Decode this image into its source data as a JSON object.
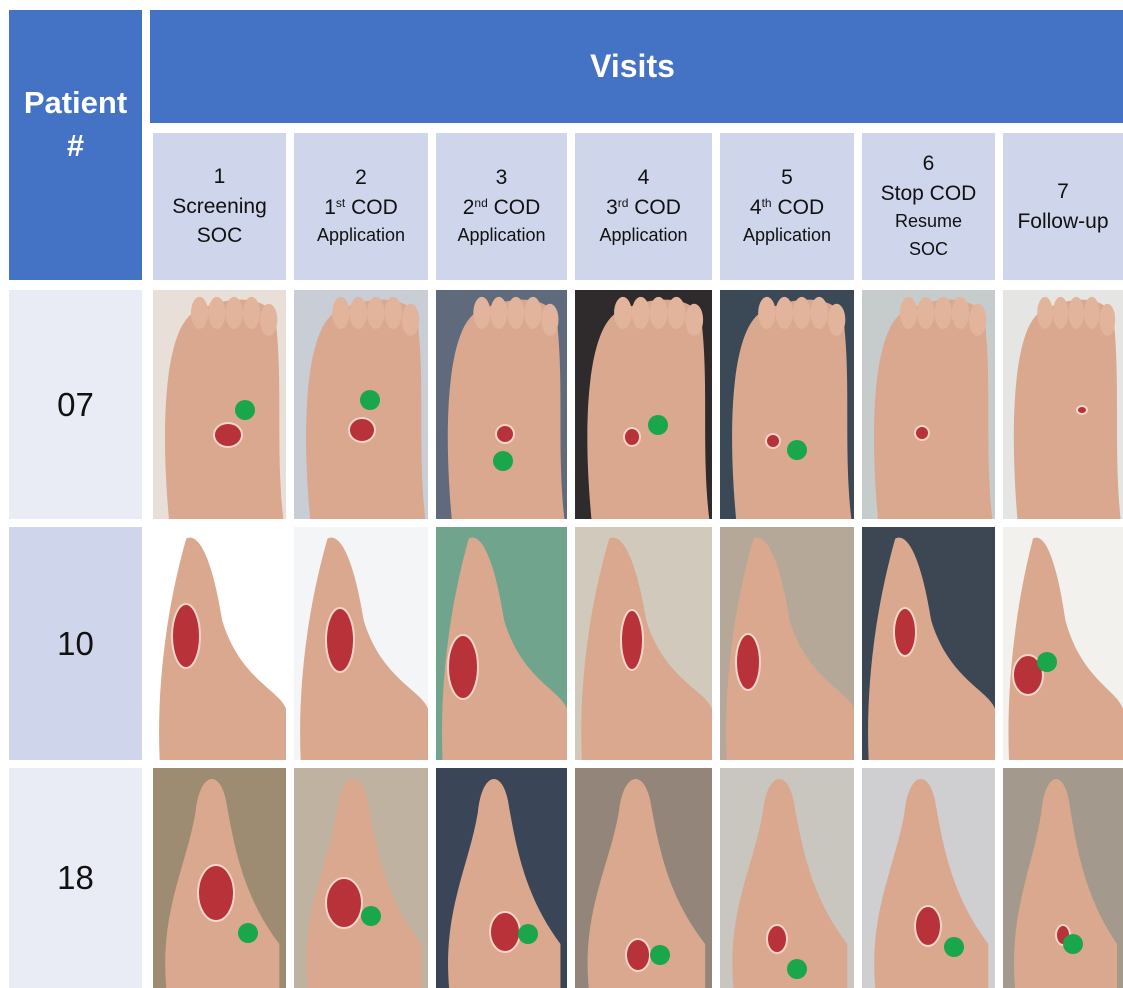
{
  "header": {
    "patient_label_line1": "Patient",
    "patient_label_line2": "#",
    "visits_label": "Visits"
  },
  "visits": [
    {
      "number": "1",
      "line1": "Screening",
      "line2": "SOC"
    },
    {
      "number": "2",
      "ordinal": "1",
      "suffix": "st",
      "word": "COD",
      "line2": "Application"
    },
    {
      "number": "3",
      "ordinal": "2",
      "suffix": "nd",
      "word": "COD",
      "line2": "Application"
    },
    {
      "number": "4",
      "ordinal": "3",
      "suffix": "rd",
      "word": "COD",
      "line2": "Application"
    },
    {
      "number": "5",
      "ordinal": "4",
      "suffix": "th",
      "word": "COD",
      "line2": "Application"
    },
    {
      "number": "6",
      "line1": "Stop COD",
      "line2": "Resume",
      "line3": "SOC"
    },
    {
      "number": "7",
      "line1": "Follow-up"
    }
  ],
  "patients": [
    {
      "id": "07"
    },
    {
      "id": "10"
    },
    {
      "id": "18"
    }
  ],
  "colors": {
    "header_blue": "#4472c4",
    "visit_cell": "#cfd5ea",
    "patient_cell_light": "#e9ebf5",
    "marker_green": "#1aa64a",
    "skin": "#d9a88e",
    "wound": "#b8323a"
  },
  "photos": [
    {
      "patient": "07",
      "visit": "1",
      "icon": "foot-wound-photo",
      "has_marker": true
    },
    {
      "patient": "07",
      "visit": "2",
      "icon": "foot-wound-photo",
      "has_marker": true
    },
    {
      "patient": "07",
      "visit": "3",
      "icon": "foot-wound-photo",
      "has_marker": true
    },
    {
      "patient": "07",
      "visit": "4",
      "icon": "foot-wound-photo",
      "has_marker": true
    },
    {
      "patient": "07",
      "visit": "5",
      "icon": "foot-wound-photo",
      "has_marker": true
    },
    {
      "patient": "07",
      "visit": "6",
      "icon": "foot-wound-photo",
      "has_marker": false
    },
    {
      "patient": "07",
      "visit": "7",
      "icon": "foot-wound-photo",
      "has_marker": false
    },
    {
      "patient": "10",
      "visit": "1",
      "icon": "foot-wound-photo",
      "has_marker": false
    },
    {
      "patient": "10",
      "visit": "2",
      "icon": "foot-wound-photo",
      "has_marker": false
    },
    {
      "patient": "10",
      "visit": "3",
      "icon": "foot-wound-photo",
      "has_marker": false
    },
    {
      "patient": "10",
      "visit": "4",
      "icon": "foot-wound-photo",
      "has_marker": false
    },
    {
      "patient": "10",
      "visit": "5",
      "icon": "foot-wound-photo",
      "has_marker": false
    },
    {
      "patient": "10",
      "visit": "6",
      "icon": "foot-wound-photo",
      "has_marker": false
    },
    {
      "patient": "10",
      "visit": "7",
      "icon": "foot-wound-photo",
      "has_marker": true
    },
    {
      "patient": "18",
      "visit": "1",
      "icon": "foot-wound-photo",
      "has_marker": true
    },
    {
      "patient": "18",
      "visit": "2",
      "icon": "foot-wound-photo",
      "has_marker": true
    },
    {
      "patient": "18",
      "visit": "3",
      "icon": "foot-wound-photo",
      "has_marker": true
    },
    {
      "patient": "18",
      "visit": "4",
      "icon": "foot-wound-photo",
      "has_marker": true
    },
    {
      "patient": "18",
      "visit": "5",
      "icon": "foot-wound-photo",
      "has_marker": true
    },
    {
      "patient": "18",
      "visit": "6",
      "icon": "foot-wound-photo",
      "has_marker": true
    },
    {
      "patient": "18",
      "visit": "7",
      "icon": "foot-wound-photo",
      "has_marker": true
    }
  ]
}
